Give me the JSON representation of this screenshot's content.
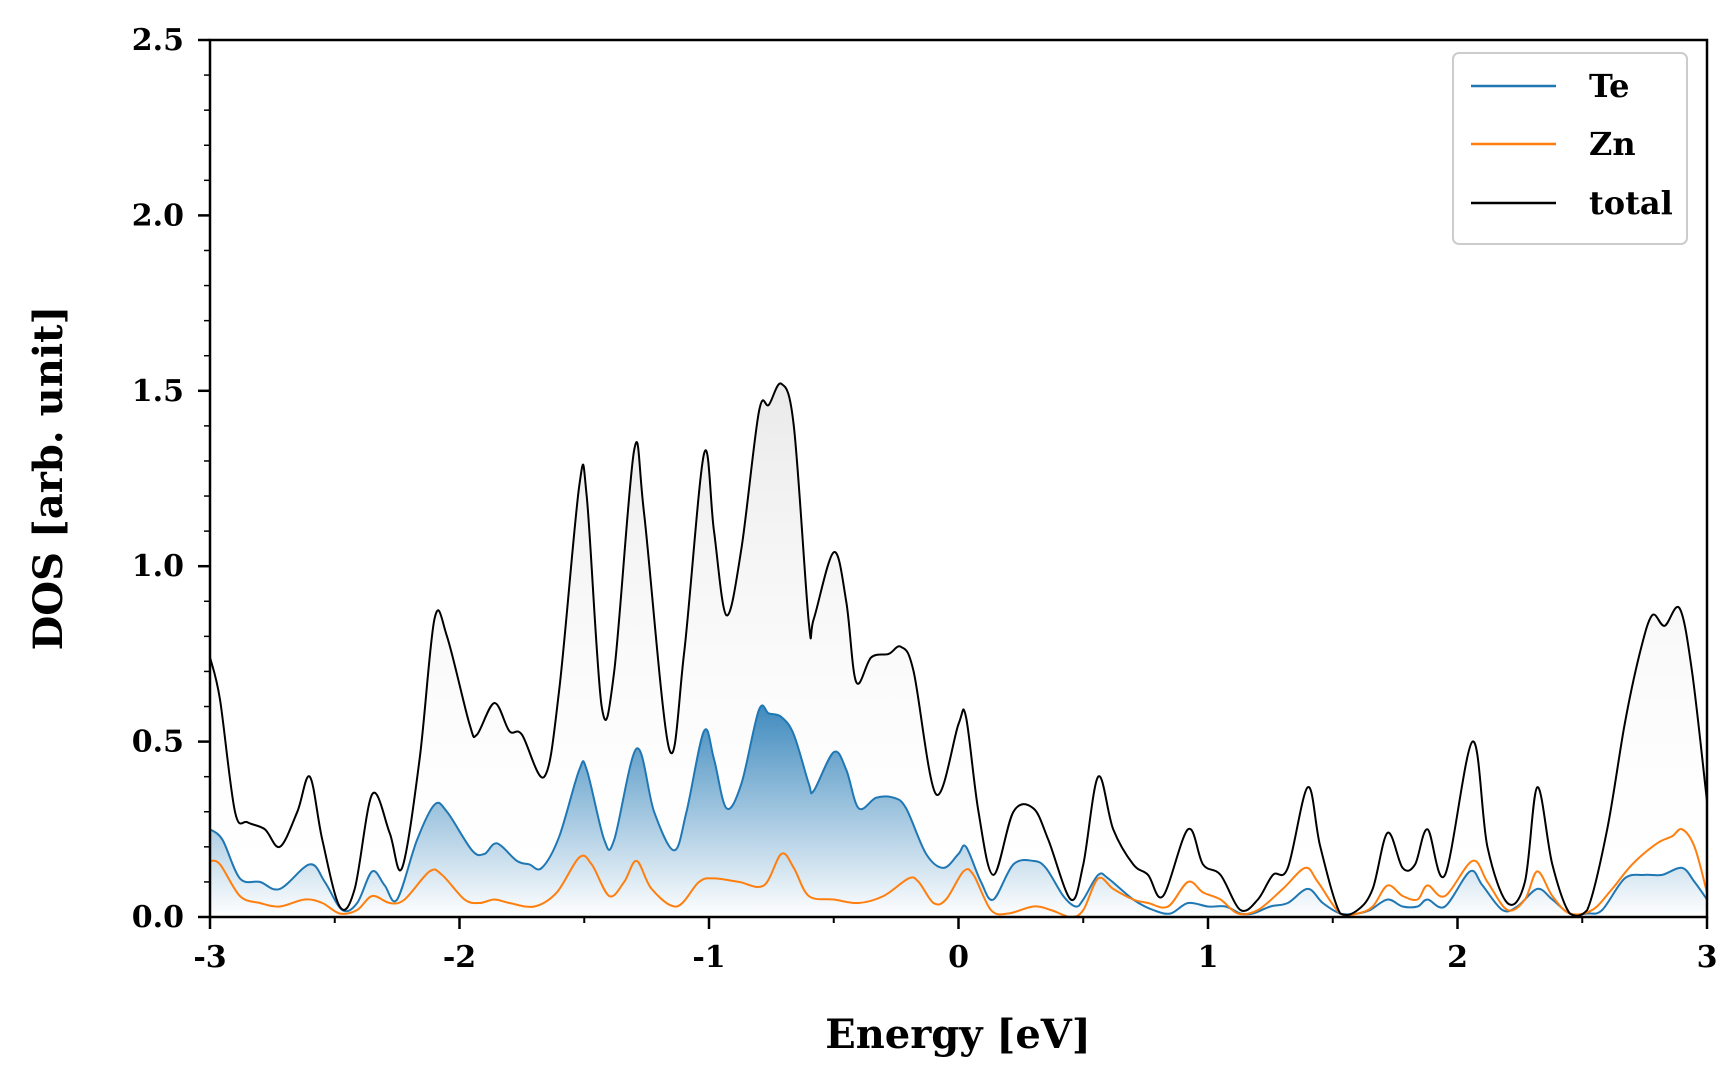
{
  "chart_data": {
    "type": "line",
    "title": "",
    "xlabel": "Energy [eV]",
    "ylabel": "DOS [arb. unit]",
    "xlim": [
      -3,
      3
    ],
    "ylim": [
      0,
      2.5
    ],
    "x_ticks": [
      "-3",
      "-2",
      "-1",
      "0",
      "1",
      "2",
      "3"
    ],
    "y_ticks": [
      "0.0",
      "0.5",
      "1.0",
      "1.5",
      "2.0",
      "2.5"
    ],
    "grid": false,
    "legend_position": "top-right",
    "colors": {
      "Te": "#1f77b4",
      "Zn": "#ff7f0e",
      "total": "#000000"
    },
    "series": [
      {
        "name": "Te",
        "color": "#1f77b4",
        "points": [
          [
            -3.0,
            0.25
          ],
          [
            -2.95,
            0.22
          ],
          [
            -2.88,
            0.11
          ],
          [
            -2.8,
            0.1
          ],
          [
            -2.72,
            0.08
          ],
          [
            -2.6,
            0.15
          ],
          [
            -2.54,
            0.1
          ],
          [
            -2.47,
            0.02
          ],
          [
            -2.41,
            0.04
          ],
          [
            -2.35,
            0.13
          ],
          [
            -2.3,
            0.09
          ],
          [
            -2.25,
            0.05
          ],
          [
            -2.17,
            0.22
          ],
          [
            -2.1,
            0.32
          ],
          [
            -2.05,
            0.3
          ],
          [
            -1.95,
            0.19
          ],
          [
            -1.9,
            0.18
          ],
          [
            -1.85,
            0.21
          ],
          [
            -1.77,
            0.16
          ],
          [
            -1.72,
            0.15
          ],
          [
            -1.67,
            0.14
          ],
          [
            -1.6,
            0.23
          ],
          [
            -1.52,
            0.42
          ],
          [
            -1.49,
            0.42
          ],
          [
            -1.42,
            0.22
          ],
          [
            -1.38,
            0.22
          ],
          [
            -1.29,
            0.48
          ],
          [
            -1.22,
            0.3
          ],
          [
            -1.14,
            0.19
          ],
          [
            -1.09,
            0.3
          ],
          [
            -1.02,
            0.53
          ],
          [
            -0.98,
            0.45
          ],
          [
            -0.93,
            0.31
          ],
          [
            -0.87,
            0.38
          ],
          [
            -0.8,
            0.59
          ],
          [
            -0.76,
            0.58
          ],
          [
            -0.71,
            0.57
          ],
          [
            -0.66,
            0.52
          ],
          [
            -0.6,
            0.38
          ],
          [
            -0.58,
            0.36
          ],
          [
            -0.5,
            0.47
          ],
          [
            -0.45,
            0.42
          ],
          [
            -0.4,
            0.31
          ],
          [
            -0.33,
            0.34
          ],
          [
            -0.26,
            0.34
          ],
          [
            -0.21,
            0.31
          ],
          [
            -0.13,
            0.18
          ],
          [
            -0.06,
            0.14
          ],
          [
            0.0,
            0.18
          ],
          [
            0.03,
            0.2
          ],
          [
            0.09,
            0.1
          ],
          [
            0.14,
            0.05
          ],
          [
            0.22,
            0.15
          ],
          [
            0.3,
            0.16
          ],
          [
            0.35,
            0.14
          ],
          [
            0.42,
            0.06
          ],
          [
            0.47,
            0.03
          ],
          [
            0.5,
            0.05
          ],
          [
            0.56,
            0.12
          ],
          [
            0.6,
            0.11
          ],
          [
            0.7,
            0.05
          ],
          [
            0.78,
            0.02
          ],
          [
            0.85,
            0.01
          ],
          [
            0.92,
            0.04
          ],
          [
            1.0,
            0.03
          ],
          [
            1.07,
            0.03
          ],
          [
            1.13,
            0.01
          ],
          [
            1.18,
            0.01
          ],
          [
            1.25,
            0.03
          ],
          [
            1.32,
            0.04
          ],
          [
            1.4,
            0.08
          ],
          [
            1.46,
            0.04
          ],
          [
            1.53,
            0.01
          ],
          [
            1.6,
            0.01
          ],
          [
            1.65,
            0.02
          ],
          [
            1.72,
            0.05
          ],
          [
            1.78,
            0.03
          ],
          [
            1.84,
            0.03
          ],
          [
            1.88,
            0.05
          ],
          [
            1.95,
            0.03
          ],
          [
            2.05,
            0.13
          ],
          [
            2.1,
            0.09
          ],
          [
            2.18,
            0.02
          ],
          [
            2.24,
            0.03
          ],
          [
            2.32,
            0.08
          ],
          [
            2.38,
            0.05
          ],
          [
            2.45,
            0.01
          ],
          [
            2.52,
            0.01
          ],
          [
            2.58,
            0.02
          ],
          [
            2.67,
            0.11
          ],
          [
            2.75,
            0.12
          ],
          [
            2.82,
            0.12
          ],
          [
            2.9,
            0.14
          ],
          [
            2.95,
            0.1
          ],
          [
            3.0,
            0.05
          ]
        ]
      },
      {
        "name": "Zn",
        "color": "#ff7f0e",
        "points": [
          [
            -3.0,
            0.16
          ],
          [
            -2.96,
            0.15
          ],
          [
            -2.88,
            0.06
          ],
          [
            -2.8,
            0.04
          ],
          [
            -2.72,
            0.03
          ],
          [
            -2.62,
            0.05
          ],
          [
            -2.55,
            0.04
          ],
          [
            -2.48,
            0.01
          ],
          [
            -2.41,
            0.02
          ],
          [
            -2.35,
            0.06
          ],
          [
            -2.28,
            0.04
          ],
          [
            -2.22,
            0.05
          ],
          [
            -2.12,
            0.13
          ],
          [
            -2.07,
            0.12
          ],
          [
            -1.98,
            0.05
          ],
          [
            -1.92,
            0.04
          ],
          [
            -1.86,
            0.05
          ],
          [
            -1.8,
            0.04
          ],
          [
            -1.7,
            0.03
          ],
          [
            -1.61,
            0.07
          ],
          [
            -1.52,
            0.17
          ],
          [
            -1.47,
            0.15
          ],
          [
            -1.4,
            0.06
          ],
          [
            -1.34,
            0.1
          ],
          [
            -1.29,
            0.16
          ],
          [
            -1.23,
            0.08
          ],
          [
            -1.13,
            0.03
          ],
          [
            -1.04,
            0.1
          ],
          [
            -0.98,
            0.11
          ],
          [
            -0.88,
            0.1
          ],
          [
            -0.78,
            0.09
          ],
          [
            -0.71,
            0.18
          ],
          [
            -0.66,
            0.14
          ],
          [
            -0.6,
            0.06
          ],
          [
            -0.5,
            0.05
          ],
          [
            -0.4,
            0.04
          ],
          [
            -0.3,
            0.06
          ],
          [
            -0.2,
            0.11
          ],
          [
            -0.16,
            0.1
          ],
          [
            -0.1,
            0.04
          ],
          [
            -0.05,
            0.05
          ],
          [
            0.02,
            0.13
          ],
          [
            0.06,
            0.12
          ],
          [
            0.13,
            0.02
          ],
          [
            0.2,
            0.01
          ],
          [
            0.3,
            0.03
          ],
          [
            0.37,
            0.02
          ],
          [
            0.45,
            0.0
          ],
          [
            0.5,
            0.02
          ],
          [
            0.56,
            0.11
          ],
          [
            0.62,
            0.08
          ],
          [
            0.7,
            0.05
          ],
          [
            0.76,
            0.04
          ],
          [
            0.84,
            0.03
          ],
          [
            0.92,
            0.1
          ],
          [
            0.98,
            0.07
          ],
          [
            1.05,
            0.05
          ],
          [
            1.12,
            0.01
          ],
          [
            1.2,
            0.02
          ],
          [
            1.3,
            0.08
          ],
          [
            1.39,
            0.14
          ],
          [
            1.44,
            0.1
          ],
          [
            1.53,
            0.01
          ],
          [
            1.6,
            0.01
          ],
          [
            1.66,
            0.03
          ],
          [
            1.72,
            0.09
          ],
          [
            1.78,
            0.06
          ],
          [
            1.84,
            0.05
          ],
          [
            1.88,
            0.09
          ],
          [
            1.95,
            0.06
          ],
          [
            2.06,
            0.16
          ],
          [
            2.12,
            0.1
          ],
          [
            2.2,
            0.02
          ],
          [
            2.27,
            0.05
          ],
          [
            2.32,
            0.13
          ],
          [
            2.38,
            0.06
          ],
          [
            2.45,
            0.01
          ],
          [
            2.54,
            0.02
          ],
          [
            2.62,
            0.08
          ],
          [
            2.7,
            0.15
          ],
          [
            2.8,
            0.21
          ],
          [
            2.86,
            0.23
          ],
          [
            2.9,
            0.25
          ],
          [
            2.95,
            0.2
          ],
          [
            3.0,
            0.07
          ]
        ]
      },
      {
        "name": "total",
        "color": "#000000",
        "points": [
          [
            -3.0,
            0.74
          ],
          [
            -2.96,
            0.62
          ],
          [
            -2.9,
            0.3
          ],
          [
            -2.85,
            0.27
          ],
          [
            -2.78,
            0.25
          ],
          [
            -2.72,
            0.2
          ],
          [
            -2.65,
            0.3
          ],
          [
            -2.6,
            0.4
          ],
          [
            -2.55,
            0.22
          ],
          [
            -2.48,
            0.03
          ],
          [
            -2.42,
            0.08
          ],
          [
            -2.35,
            0.35
          ],
          [
            -2.28,
            0.24
          ],
          [
            -2.23,
            0.14
          ],
          [
            -2.16,
            0.45
          ],
          [
            -2.1,
            0.85
          ],
          [
            -2.05,
            0.8
          ],
          [
            -1.96,
            0.55
          ],
          [
            -1.93,
            0.52
          ],
          [
            -1.86,
            0.61
          ],
          [
            -1.8,
            0.53
          ],
          [
            -1.75,
            0.52
          ],
          [
            -1.66,
            0.4
          ],
          [
            -1.6,
            0.65
          ],
          [
            -1.52,
            1.23
          ],
          [
            -1.49,
            1.2
          ],
          [
            -1.43,
            0.6
          ],
          [
            -1.38,
            0.7
          ],
          [
            -1.3,
            1.33
          ],
          [
            -1.26,
            1.15
          ],
          [
            -1.16,
            0.48
          ],
          [
            -1.1,
            0.75
          ],
          [
            -1.02,
            1.32
          ],
          [
            -0.98,
            1.1
          ],
          [
            -0.93,
            0.86
          ],
          [
            -0.87,
            1.05
          ],
          [
            -0.8,
            1.44
          ],
          [
            -0.76,
            1.46
          ],
          [
            -0.71,
            1.52
          ],
          [
            -0.66,
            1.4
          ],
          [
            -0.6,
            0.84
          ],
          [
            -0.58,
            0.85
          ],
          [
            -0.5,
            1.04
          ],
          [
            -0.45,
            0.9
          ],
          [
            -0.41,
            0.67
          ],
          [
            -0.35,
            0.74
          ],
          [
            -0.28,
            0.75
          ],
          [
            -0.23,
            0.77
          ],
          [
            -0.18,
            0.7
          ],
          [
            -0.09,
            0.35
          ],
          [
            0.0,
            0.55
          ],
          [
            0.03,
            0.57
          ],
          [
            0.08,
            0.3
          ],
          [
            0.14,
            0.12
          ],
          [
            0.22,
            0.3
          ],
          [
            0.3,
            0.31
          ],
          [
            0.36,
            0.22
          ],
          [
            0.45,
            0.05
          ],
          [
            0.5,
            0.15
          ],
          [
            0.56,
            0.4
          ],
          [
            0.62,
            0.25
          ],
          [
            0.7,
            0.15
          ],
          [
            0.76,
            0.12
          ],
          [
            0.82,
            0.06
          ],
          [
            0.92,
            0.25
          ],
          [
            0.98,
            0.15
          ],
          [
            1.05,
            0.12
          ],
          [
            1.13,
            0.02
          ],
          [
            1.2,
            0.05
          ],
          [
            1.26,
            0.12
          ],
          [
            1.32,
            0.14
          ],
          [
            1.4,
            0.37
          ],
          [
            1.45,
            0.2
          ],
          [
            1.53,
            0.01
          ],
          [
            1.6,
            0.02
          ],
          [
            1.66,
            0.08
          ],
          [
            1.72,
            0.24
          ],
          [
            1.78,
            0.14
          ],
          [
            1.83,
            0.15
          ],
          [
            1.88,
            0.25
          ],
          [
            1.95,
            0.12
          ],
          [
            2.06,
            0.5
          ],
          [
            2.12,
            0.2
          ],
          [
            2.2,
            0.04
          ],
          [
            2.27,
            0.1
          ],
          [
            2.32,
            0.37
          ],
          [
            2.38,
            0.15
          ],
          [
            2.45,
            0.01
          ],
          [
            2.52,
            0.02
          ],
          [
            2.6,
            0.25
          ],
          [
            2.67,
            0.55
          ],
          [
            2.73,
            0.75
          ],
          [
            2.78,
            0.86
          ],
          [
            2.83,
            0.83
          ],
          [
            2.89,
            0.88
          ],
          [
            2.94,
            0.7
          ],
          [
            3.0,
            0.33
          ]
        ]
      }
    ]
  }
}
